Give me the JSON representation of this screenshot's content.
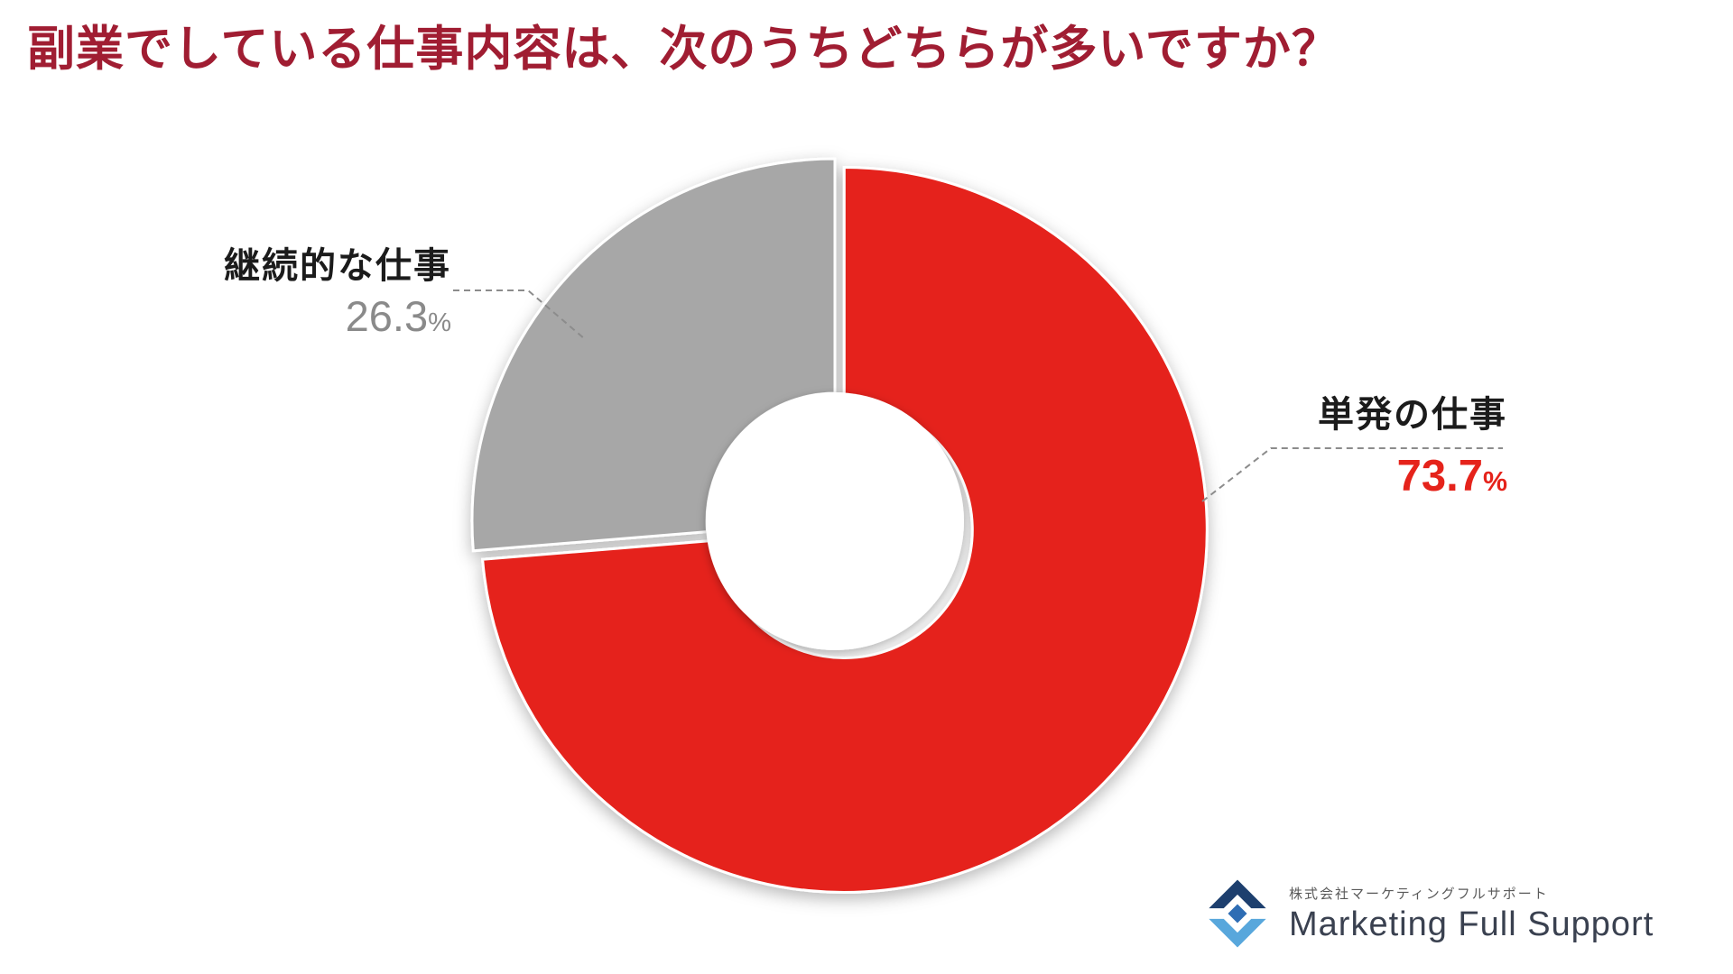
{
  "title": "副業でしている仕事内容は、次のうちどちらが多いですか？",
  "chart_data": {
    "type": "pie",
    "subtype": "donut",
    "title": "副業でしている仕事内容は、次のうちどちらが多いですか？",
    "start_angle_deg": 0,
    "legend": "none",
    "segments": [
      {
        "label": "単発の仕事",
        "value": 73.7,
        "value_text": "73.7",
        "unit": "%",
        "color": "#e5231b",
        "exploded": true
      },
      {
        "label": "継続的な仕事",
        "value": 26.3,
        "value_text": "26.3",
        "unit": "%",
        "color": "#a7a7a7",
        "exploded": false
      }
    ]
  },
  "logo": {
    "company_jp": "株式会社マーケティングフルサポート",
    "company_en": "Marketing Full Support"
  },
  "colors": {
    "title": "#a01d32",
    "single_work_pct": "#e5231b",
    "continuous_work_pct": "#8a8a8a",
    "leader_line": "#8c8c8c"
  }
}
